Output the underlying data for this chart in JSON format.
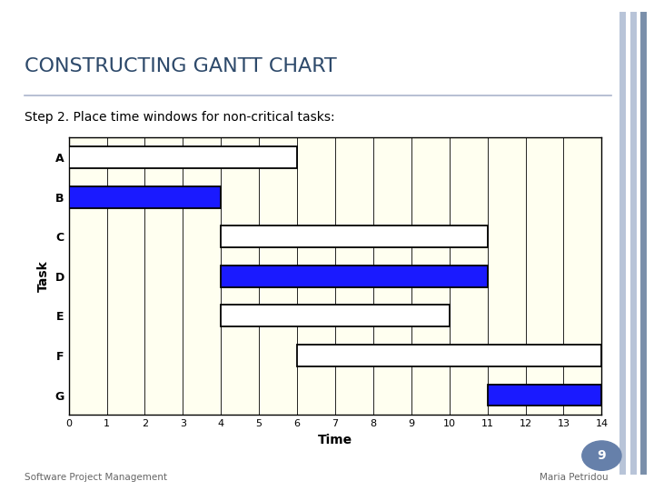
{
  "title": "CONSTRUCTING GANTT CHART",
  "subtitle": "Step 2. Place time windows for non-critical tasks:",
  "footer_left": "Software Project Management",
  "footer_right": "Maria Petridou",
  "page_number": "9",
  "tasks": [
    "A",
    "B",
    "C",
    "D",
    "E",
    "F",
    "G"
  ],
  "bars": [
    {
      "task": "A",
      "start": 0,
      "end": 6,
      "color": "white",
      "edgecolor": "black"
    },
    {
      "task": "B",
      "start": 0,
      "end": 4,
      "color": "#1a1aff",
      "edgecolor": "black"
    },
    {
      "task": "C",
      "start": 4,
      "end": 11,
      "color": "white",
      "edgecolor": "black"
    },
    {
      "task": "D",
      "start": 4,
      "end": 11,
      "color": "#1a1aff",
      "edgecolor": "black"
    },
    {
      "task": "E",
      "start": 4,
      "end": 10,
      "color": "white",
      "edgecolor": "black"
    },
    {
      "task": "F",
      "start": 6,
      "end": 14,
      "color": "white",
      "edgecolor": "black"
    },
    {
      "task": "G",
      "start": 11,
      "end": 14,
      "color": "#1a1aff",
      "edgecolor": "black"
    }
  ],
  "xlabel": "Time",
  "ylabel": "Task",
  "xlim": [
    0,
    14
  ],
  "xticks": [
    0,
    1,
    2,
    3,
    4,
    5,
    6,
    7,
    8,
    9,
    10,
    11,
    12,
    13,
    14
  ],
  "bar_height": 0.55,
  "chart_bg": "#fffff0",
  "slide_bg": "#ffffff",
  "title_color": "#2e4a6b",
  "subtitle_color": "#000000",
  "accent_line_color": "#aab4cc",
  "right_border1": "#b8c4d8",
  "right_border2": "#b8c4d8",
  "right_border3": "#7a8faa",
  "title_fontsize": 16,
  "subtitle_fontsize": 10,
  "footer_fontsize": 7.5,
  "page_circle_color": "#6680aa"
}
